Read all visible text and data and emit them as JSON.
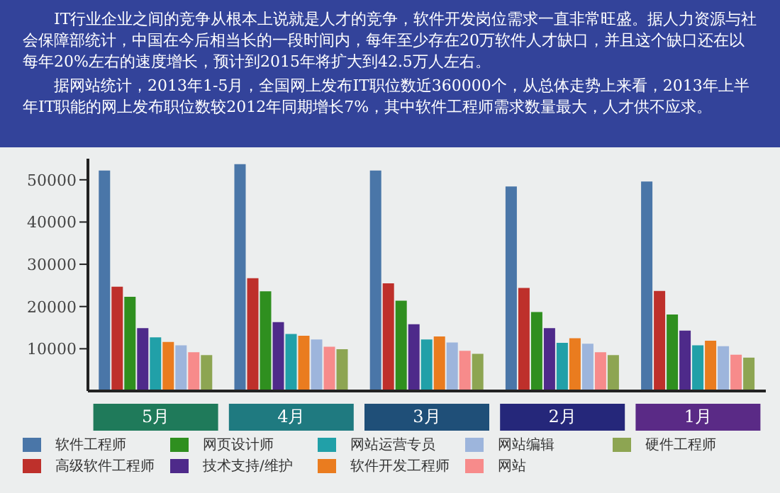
{
  "chart_data": {
    "type": "bar",
    "title": "IT行业企业之间的竞争从根本上说就是人才的竞争，软件开发岗位需求一直非常旺盛。据人力资源与社会保障部统计，中国在今后相当长的一段时间内，每年至少存在20万软件人才缺口，并且这个缺口还在以每年20%左右的速度增长，预计到2015年将扩大到42.5万人左右。",
    "subtitle": "据网站统计，2013年1-5月，全国网上发布IT职位数近360000个，从总体走势上来看，2013年上半年IT职能的网上发布职位数较2012年同期增长7%，其中软件工程师需求数量最大，人才供不应求。",
    "categories": [
      "5月",
      "4月",
      "3月",
      "2月",
      "1月"
    ],
    "series": [
      {
        "name": "软件工程师",
        "color": "#4a76a8",
        "values": [
          52200,
          53700,
          52200,
          48400,
          49600
        ]
      },
      {
        "name": "高级软件工程师",
        "color": "#be302b",
        "values": [
          24700,
          26700,
          25500,
          24400,
          23700
        ]
      },
      {
        "name": "网页设计师",
        "color": "#2f8f1f",
        "values": [
          22300,
          23600,
          21400,
          18700,
          18100
        ]
      },
      {
        "name": "技术支持/维护",
        "color": "#4e2a8a",
        "values": [
          14900,
          16300,
          15800,
          14900,
          14300
        ]
      },
      {
        "name": "网站运营专员",
        "color": "#21a0a8",
        "values": [
          12700,
          13500,
          12200,
          11400,
          10800
        ]
      },
      {
        "name": "软件开发工程师",
        "color": "#ea7c1f",
        "values": [
          11600,
          13100,
          12900,
          12500,
          11900
        ]
      },
      {
        "name": "网站编辑",
        "color": "#9db5dc",
        "values": [
          10800,
          12200,
          11500,
          11200,
          10600
        ]
      },
      {
        "name": "网站",
        "color": "#f78b8b",
        "values": [
          9200,
          10500,
          9500,
          9200,
          8600
        ]
      },
      {
        "name": "硬件工程师",
        "color": "#8da552",
        "values": [
          8500,
          9900,
          8800,
          8500,
          7900
        ]
      }
    ],
    "ylim": [
      0,
      55000
    ],
    "yticks": [
      10000,
      20000,
      30000,
      40000,
      50000
    ],
    "grid": false,
    "legend": "bottom"
  }
}
